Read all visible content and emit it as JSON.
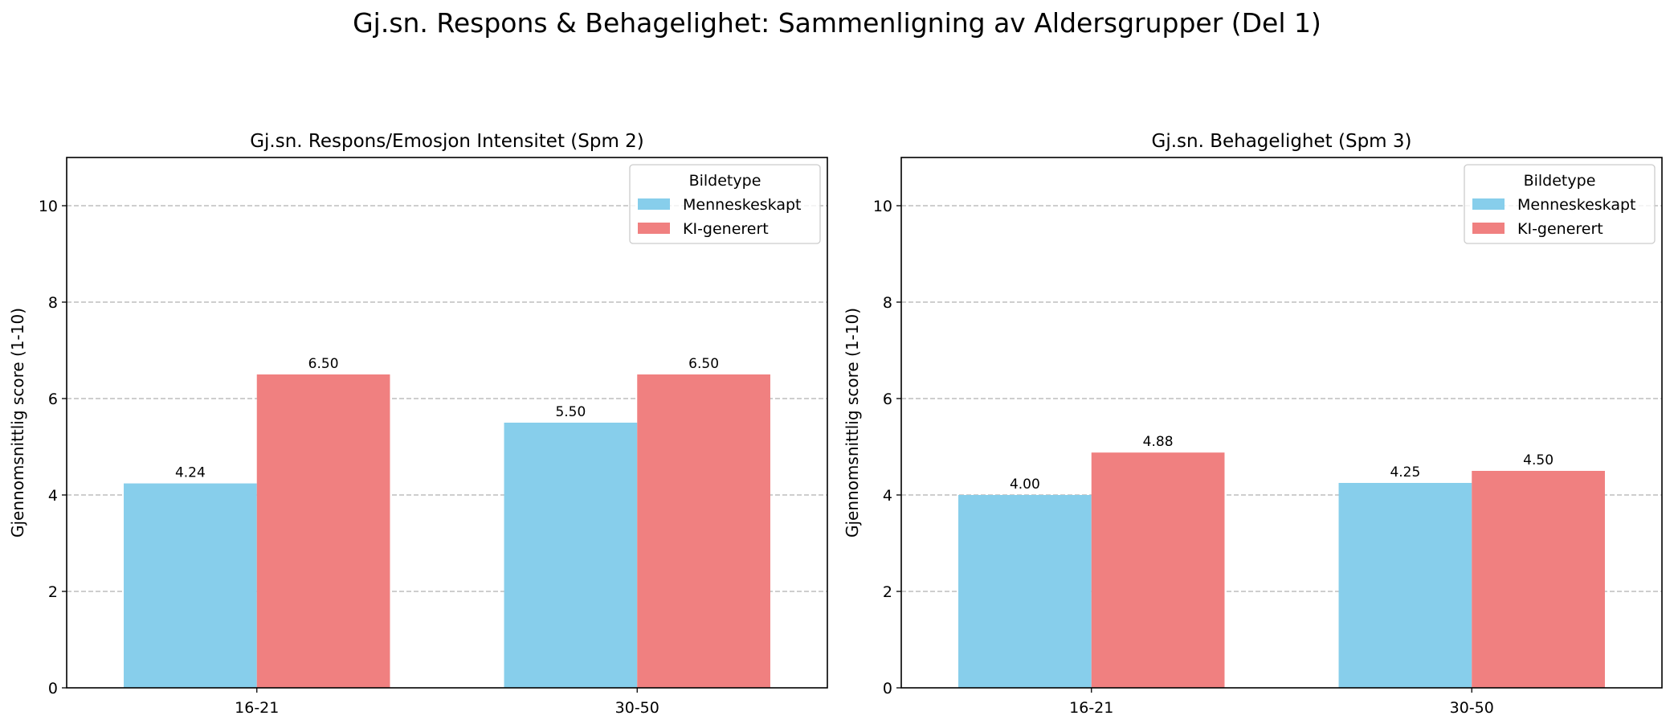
{
  "suptitle": "Gj.sn. Respons & Behagelighet: Sammenligning av Aldersgrupper (Del 1)",
  "colors": {
    "menneskeskapt": "#87CEEB",
    "ki_generert": "#F08080",
    "grid": "#b0b0b0",
    "axis": "#000000"
  },
  "chart_data": [
    {
      "type": "bar",
      "title": "Gj.sn. Respons/Emosjon Intensitet (Spm 2)",
      "xlabel": "",
      "ylabel": "Gjennomsnittlig score (1-10)",
      "categories": [
        "16-21",
        "30-50"
      ],
      "series": [
        {
          "name": "Menneskeskapt",
          "values": [
            4.24,
            5.5
          ],
          "labels": [
            "4.24",
            "5.50"
          ],
          "color_key": "menneskeskapt"
        },
        {
          "name": "KI-generert",
          "values": [
            6.5,
            6.5
          ],
          "labels": [
            "6.50",
            "6.50"
          ],
          "color_key": "ki_generert"
        }
      ],
      "ylim": [
        0,
        11
      ],
      "yticks": [
        0,
        2,
        4,
        6,
        8,
        10
      ],
      "ytick_labels": [
        "0",
        "2",
        "4",
        "6",
        "8",
        "10"
      ],
      "grid": "y-dashed",
      "legend": {
        "title": "Bildetype",
        "placement": "top-right"
      }
    },
    {
      "type": "bar",
      "title": "Gj.sn. Behagelighet (Spm 3)",
      "xlabel": "",
      "ylabel": "Gjennomsnittlig score (1-10)",
      "categories": [
        "16-21",
        "30-50"
      ],
      "series": [
        {
          "name": "Menneskeskapt",
          "values": [
            4.0,
            4.25
          ],
          "labels": [
            "4.00",
            "4.25"
          ],
          "color_key": "menneskeskapt"
        },
        {
          "name": "KI-generert",
          "values": [
            4.88,
            4.5
          ],
          "labels": [
            "4.88",
            "4.50"
          ],
          "color_key": "ki_generert"
        }
      ],
      "ylim": [
        0,
        11
      ],
      "yticks": [
        0,
        2,
        4,
        6,
        8,
        10
      ],
      "ytick_labels": [
        "0",
        "2",
        "4",
        "6",
        "8",
        "10"
      ],
      "grid": "y-dashed",
      "legend": {
        "title": "Bildetype",
        "placement": "top-right"
      }
    }
  ]
}
